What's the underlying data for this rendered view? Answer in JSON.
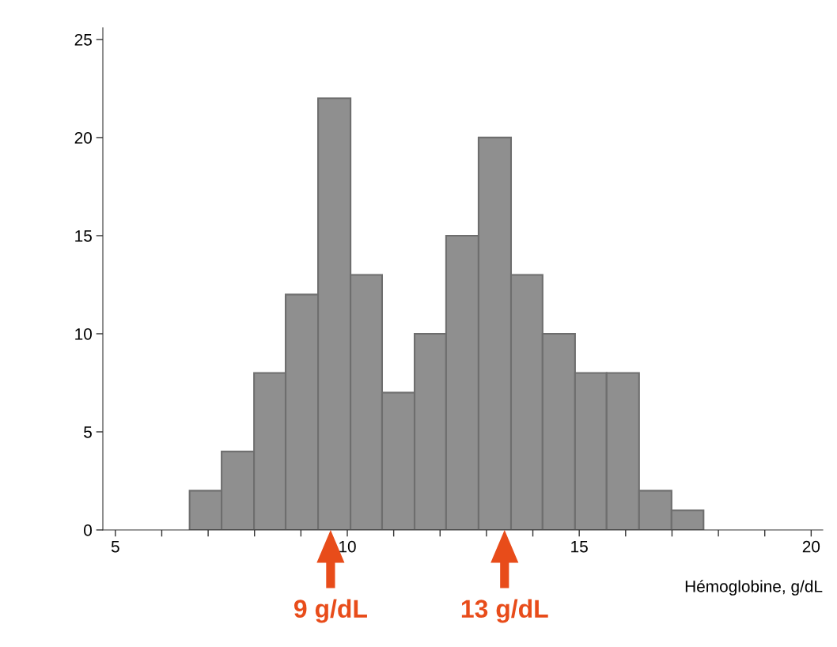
{
  "chart_data": {
    "type": "histogram",
    "xlabel": "Hémoglobine, g/dL",
    "bins": [
      6.6,
      7.29,
      7.99,
      8.67,
      9.37,
      10.07,
      10.75,
      11.45,
      12.13,
      12.83,
      13.53,
      14.21,
      14.91,
      15.59,
      16.29,
      16.99,
      17.68
    ],
    "values": [
      2,
      4,
      8,
      12,
      22,
      13,
      7,
      10,
      15,
      20,
      13,
      10,
      8,
      8,
      2,
      1
    ],
    "color": "#8f8f8f",
    "xlim": [
      4.73,
      20.25
    ],
    "ylim": [
      0,
      25.6
    ],
    "xticks": [
      5,
      {
        "value": 6,
        "label": null
      },
      {
        "value": 7,
        "label": null
      },
      {
        "value": 8,
        "label": null
      },
      {
        "value": 9,
        "label": null
      },
      10,
      {
        "value": 11,
        "label": null
      },
      {
        "value": 12,
        "label": null
      },
      {
        "value": 13,
        "label": null
      },
      {
        "value": 14,
        "label": null
      },
      15,
      {
        "value": 16,
        "label": null
      },
      {
        "value": 17,
        "label": null
      },
      {
        "value": 18,
        "label": null
      },
      {
        "value": 19,
        "label": null
      },
      20
    ],
    "yticks": [
      0,
      5,
      10,
      15,
      20,
      25
    ],
    "grid": false,
    "annotations": [
      {
        "text": "9 g/dL",
        "x": 9.64,
        "y": 0
      },
      {
        "text": "13 g/dL",
        "x": 13.39,
        "y": 0
      }
    ]
  }
}
